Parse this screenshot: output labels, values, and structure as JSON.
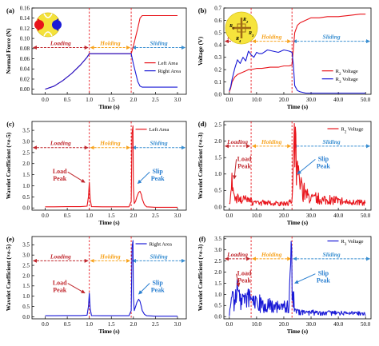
{
  "phase_labels": [
    "Loading",
    "Holding",
    "Sliding"
  ],
  "colors": {
    "left": "#e8141b",
    "right": "#1a1ad6",
    "phase_load": "#c0272d",
    "phase_hold": "#f7a21b",
    "phase_slide": "#3a8fd1",
    "divider": "#e8141b"
  },
  "chart_data": [
    {
      "id": "a",
      "panel_label": "(a)",
      "type": "line",
      "xlabel": "Time (s)",
      "ylabel": "Normal Force (N)",
      "xlim": [
        -0.3,
        3.2
      ],
      "ylim": [
        -0.01,
        0.16
      ],
      "xticks": [
        0.0,
        0.5,
        1.0,
        1.5,
        2.0,
        2.5,
        3.0
      ],
      "xticklabels": [
        "0.0",
        "0.5",
        "1.0",
        "1.5",
        "2.0",
        "2.5",
        "3.0"
      ],
      "yticks": [
        0.0,
        0.02,
        0.04,
        0.06,
        0.08,
        0.1,
        0.12,
        0.14,
        0.16
      ],
      "yticklabels": [
        "0.00",
        "0.02",
        "0.04",
        "0.06",
        "0.08",
        "0.10",
        "0.12",
        "0.14",
        "0.16"
      ],
      "dividers": [
        1.0,
        1.95
      ],
      "phases": [
        [
          -0.3,
          1.0,
          0
        ],
        [
          1.0,
          1.95,
          1
        ],
        [
          1.95,
          3.2,
          2
        ]
      ],
      "phase_y": 0.082,
      "legend": [
        {
          "label": "Left Area",
          "color": "#e8141b"
        },
        {
          "label": "Right Area",
          "color": "#1a1ad6"
        }
      ],
      "legend_pos": [
        2.25,
        0.052
      ],
      "inset": "sensor-dots",
      "series": [
        {
          "name": "Left Area",
          "color": "#e8141b",
          "x": [
            0,
            0.2,
            0.4,
            0.6,
            0.8,
            0.95,
            1.0,
            1.5,
            1.95,
            2.0,
            2.1,
            2.15,
            2.2,
            2.6,
            3.0
          ],
          "y": [
            0,
            0.006,
            0.017,
            0.031,
            0.048,
            0.063,
            0.07,
            0.07,
            0.07,
            0.085,
            0.12,
            0.14,
            0.145,
            0.145,
            0.145
          ]
        },
        {
          "name": "Right Area",
          "color": "#1a1ad6",
          "x": [
            0,
            0.2,
            0.4,
            0.6,
            0.8,
            0.95,
            1.0,
            1.5,
            1.95,
            2.0,
            2.1,
            2.15,
            2.2,
            2.6,
            3.0
          ],
          "y": [
            0,
            0.006,
            0.017,
            0.031,
            0.048,
            0.063,
            0.07,
            0.07,
            0.07,
            0.05,
            0.015,
            0.006,
            0.004,
            0.004,
            0.004
          ]
        }
      ]
    },
    {
      "id": "b",
      "panel_label": "(b)",
      "type": "line",
      "xlabel": "Time (s)",
      "ylabel": "Voltage (V)",
      "xlim": [
        -2,
        52
      ],
      "ylim": [
        0,
        0.7
      ],
      "xticks": [
        0,
        10,
        20,
        30,
        40,
        50
      ],
      "xticklabels": [
        "0.0",
        "10.0",
        "20.0",
        "30.0",
        "40.0",
        "50.0"
      ],
      "yticks": [
        0.0,
        0.1,
        0.2,
        0.3,
        0.4,
        0.5,
        0.6,
        0.7
      ],
      "yticklabels": [
        "0.0",
        "0.1",
        "0.2",
        "0.3",
        "0.4",
        "0.5",
        "0.6",
        "0.7"
      ],
      "dividers": [
        8,
        23
      ],
      "phases": [
        [
          -2,
          8,
          0
        ],
        [
          8,
          23,
          1
        ],
        [
          23,
          52,
          2
        ]
      ],
      "phase_y": 0.43,
      "legend": [
        {
          "label": "R",
          "sub": "2",
          "suffix": " Voltage",
          "color": "#e8141b"
        },
        {
          "label": "R",
          "sub": "3",
          "suffix": " Voltage",
          "color": "#1a1ad6"
        }
      ],
      "legend_pos": [
        34,
        0.19
      ],
      "inset": "sensor-cross",
      "inset_labels": [
        "R",
        "1",
        "R",
        "2",
        "R",
        "3",
        "R",
        "4"
      ],
      "series": [
        {
          "name": "R2 Voltage",
          "color": "#e8141b",
          "x": [
            0,
            0.5,
            1,
            2,
            3,
            4,
            5,
            6,
            7,
            8,
            10,
            12,
            15,
            18,
            20,
            22,
            23,
            24,
            25,
            26,
            28,
            30,
            33,
            36,
            40,
            44,
            48,
            50
          ],
          "y": [
            0.02,
            0.05,
            0.1,
            0.14,
            0.16,
            0.17,
            0.18,
            0.19,
            0.2,
            0.2,
            0.21,
            0.21,
            0.22,
            0.22,
            0.23,
            0.23,
            0.24,
            0.5,
            0.56,
            0.58,
            0.6,
            0.62,
            0.62,
            0.63,
            0.63,
            0.64,
            0.65,
            0.65
          ]
        },
        {
          "name": "R3 Voltage",
          "color": "#1a1ad6",
          "x": [
            0,
            0.5,
            1,
            2,
            3,
            4,
            5,
            6,
            7,
            8,
            9,
            10,
            11,
            12,
            14,
            16,
            18,
            20,
            22,
            23,
            23.5,
            24,
            25,
            26,
            28,
            30,
            33,
            36,
            40,
            44,
            48,
            50
          ],
          "y": [
            0.03,
            0.06,
            0.12,
            0.21,
            0.28,
            0.25,
            0.3,
            0.27,
            0.35,
            0.32,
            0.3,
            0.34,
            0.33,
            0.33,
            0.36,
            0.35,
            0.34,
            0.36,
            0.35,
            0.34,
            0.24,
            0.07,
            0.03,
            0.02,
            0.01,
            0.01,
            0.01,
            0.01,
            0.01,
            0.01,
            0.01,
            0.01
          ]
        }
      ]
    },
    {
      "id": "c",
      "panel_label": "(c)",
      "type": "line",
      "xlabel": "Time (s)",
      "ylabel": "Wavelet Coefficient (×e-5)",
      "xlim": [
        -0.3,
        3.2
      ],
      "ylim": [
        -0.1,
        3.9
      ],
      "xticks": [
        0.0,
        0.5,
        1.0,
        1.5,
        2.0,
        2.5,
        3.0
      ],
      "xticklabels": [
        "0.0",
        "0.5",
        "1.0",
        "1.5",
        "2.0",
        "2.5",
        "3.0"
      ],
      "yticks": [
        0.0,
        0.5,
        1.0,
        1.5,
        2.0,
        2.5,
        3.0,
        3.5
      ],
      "yticklabels": [
        "0.0",
        "0.5",
        "1.0",
        "1.5",
        "2.0",
        "2.5",
        "3.0",
        "3.5"
      ],
      "dividers": [
        1.0,
        1.95
      ],
      "phases": [
        [
          -0.3,
          1.0,
          0
        ],
        [
          1.0,
          1.95,
          1
        ],
        [
          1.95,
          3.2,
          2
        ]
      ],
      "phase_y": 2.72,
      "legend": [
        {
          "label": "Left Area",
          "color": "#e8141b"
        }
      ],
      "legend_pos": [
        2.05,
        3.55
      ],
      "annotations": [
        {
          "lines": [
            "Load",
            "Peak"
          ],
          "color": "#c0272d",
          "tx": 0.33,
          "ty": 1.55,
          "ax": 0.9,
          "ay": 1.15
        },
        {
          "lines": [
            "Slip",
            "Peak"
          ],
          "color": "#2a7fd0",
          "tx": 2.55,
          "ty": 1.55,
          "ax": 2.1,
          "ay": 1.1
        }
      ],
      "series": [
        {
          "name": "Left Area",
          "color": "#e8141b",
          "x": [
            0,
            0.2,
            0.5,
            0.8,
            0.95,
            0.98,
            1.0,
            1.02,
            1.05,
            1.3,
            1.6,
            1.9,
            1.95,
            1.97,
            1.99,
            2.0,
            2.02,
            2.05,
            2.08,
            2.12,
            2.15,
            2.18,
            2.2,
            2.25,
            2.3,
            2.5,
            2.8,
            3.0
          ],
          "y": [
            0.05,
            0.05,
            0.06,
            0.06,
            0.08,
            0.5,
            1.15,
            0.4,
            0.06,
            0.05,
            0.05,
            0.05,
            0.3,
            3.4,
            3.7,
            1.0,
            0.2,
            0.3,
            0.5,
            0.7,
            0.75,
            0.6,
            0.4,
            0.15,
            0.05,
            0.03,
            0.03,
            0.03
          ]
        }
      ]
    },
    {
      "id": "d",
      "panel_label": "(d)",
      "type": "line",
      "xlabel": "Time (s)",
      "ylabel": "Wavelet Coefficient (×e-3)",
      "xlim": [
        -2,
        52
      ],
      "ylim": [
        -0.1,
        2.6
      ],
      "xticks": [
        0,
        10,
        20,
        30,
        40,
        50
      ],
      "xticklabels": [
        "0.0",
        "10.0",
        "20.0",
        "30.0",
        "40.0",
        "50.0"
      ],
      "yticks": [
        0.0,
        0.5,
        1.0,
        1.5,
        2.0,
        2.5
      ],
      "yticklabels": [
        "0.0",
        "0.5",
        "1.0",
        "1.5",
        "2.0",
        "2.5"
      ],
      "dividers": [
        8,
        23
      ],
      "phases": [
        [
          -2,
          8,
          0
        ],
        [
          8,
          23,
          1
        ],
        [
          23,
          52,
          2
        ]
      ],
      "phase_y": 1.85,
      "legend": [
        {
          "label": "R",
          "sub": "2",
          "suffix": " Voltage",
          "color": "#e8141b"
        }
      ],
      "legend_pos": [
        36,
        2.38
      ],
      "annotations": [
        {
          "lines": [
            "Load",
            "Peak"
          ],
          "color": "#c0272d",
          "tx": 5.5,
          "ty": 1.4,
          "ax": 1.8,
          "ay": 0.85
        },
        {
          "lines": [
            "Slip",
            "Peak"
          ],
          "color": "#2a7fd0",
          "tx": 34.5,
          "ty": 1.4,
          "ax": 25,
          "ay": 1.0
        }
      ],
      "series": [
        {
          "name": "R2 Voltage",
          "color": "#e8141b",
          "noise": true,
          "seed": 7,
          "x": [
            0,
            0.5,
            1,
            1.5,
            2,
            3,
            4,
            6,
            8,
            10,
            14,
            18,
            22,
            23,
            23.5,
            24,
            25,
            27,
            30,
            34,
            38,
            42,
            46,
            50
          ],
          "y": [
            0.1,
            0.4,
            0.95,
            0.5,
            0.2,
            0.35,
            0.25,
            0.3,
            0.2,
            0.15,
            0.15,
            0.12,
            0.15,
            0.2,
            1.2,
            2.1,
            1.1,
            0.6,
            0.35,
            0.28,
            0.25,
            0.2,
            0.18,
            0.15
          ]
        }
      ]
    },
    {
      "id": "e",
      "panel_label": "(e)",
      "type": "line",
      "xlabel": "Time (s)",
      "ylabel": "Wavelet Coefficient (×e-5)",
      "xlim": [
        -0.3,
        3.2
      ],
      "ylim": [
        -0.1,
        3.9
      ],
      "xticks": [
        0.0,
        0.5,
        1.0,
        1.5,
        2.0,
        2.5,
        3.0
      ],
      "xticklabels": [
        "0.0",
        "0.5",
        "1.0",
        "1.5",
        "2.0",
        "2.5",
        "3.0"
      ],
      "yticks": [
        0.0,
        0.5,
        1.0,
        1.5,
        2.0,
        2.5,
        3.0,
        3.5
      ],
      "yticklabels": [
        "0.0",
        "0.5",
        "1.0",
        "1.5",
        "2.0",
        "2.5",
        "3.0",
        "3.5"
      ],
      "dividers": [
        1.0,
        1.95
      ],
      "phases": [
        [
          -0.3,
          1.0,
          0
        ],
        [
          1.0,
          1.95,
          1
        ],
        [
          1.95,
          3.2,
          2
        ]
      ],
      "phase_y": 2.72,
      "legend": [
        {
          "label": "Right Area",
          "color": "#1a1ad6"
        }
      ],
      "legend_pos": [
        2.05,
        3.55
      ],
      "annotations": [
        {
          "lines": [
            "Load",
            "Peak"
          ],
          "color": "#c0272d",
          "tx": 0.33,
          "ty": 1.55,
          "ax": 0.9,
          "ay": 1.15
        },
        {
          "lines": [
            "Slip",
            "Peak"
          ],
          "color": "#2a7fd0",
          "tx": 2.55,
          "ty": 1.55,
          "ax": 2.12,
          "ay": 1.1
        }
      ],
      "series": [
        {
          "name": "Right Area",
          "color": "#1a1ad6",
          "x": [
            0,
            0.2,
            0.5,
            0.8,
            0.95,
            0.98,
            1.0,
            1.02,
            1.05,
            1.3,
            1.6,
            1.9,
            1.95,
            1.97,
            1.99,
            2.0,
            2.02,
            2.05,
            2.08,
            2.12,
            2.15,
            2.18,
            2.2,
            2.25,
            2.3,
            2.5,
            2.8,
            3.0
          ],
          "y": [
            0.05,
            0.05,
            0.06,
            0.06,
            0.08,
            0.5,
            1.15,
            0.4,
            0.06,
            0.05,
            0.05,
            0.05,
            0.3,
            3.4,
            3.7,
            1.0,
            0.3,
            0.5,
            0.7,
            0.85,
            0.75,
            0.5,
            0.3,
            0.12,
            0.05,
            0.03,
            0.03,
            0.03
          ]
        }
      ]
    },
    {
      "id": "f",
      "panel_label": "(f)",
      "type": "line",
      "xlabel": "Time (s)",
      "ylabel": "Wavelet Coefficient (×e-3)",
      "xlim": [
        -2,
        52
      ],
      "ylim": [
        -0.1,
        3.6
      ],
      "xticks": [
        0,
        10,
        20,
        30,
        40,
        50
      ],
      "xticklabels": [
        "0.0",
        "10.0",
        "20.0",
        "30.0",
        "40.0",
        "50.0"
      ],
      "yticks": [
        0.0,
        0.5,
        1.0,
        1.5,
        2.0,
        2.5,
        3.0,
        3.5
      ],
      "yticklabels": [
        "0.0",
        "0.5",
        "1.0",
        "1.5",
        "2.0",
        "2.5",
        "3.0",
        "3.5"
      ],
      "dividers": [
        8,
        23
      ],
      "phases": [
        [
          -2,
          8,
          0
        ],
        [
          8,
          23,
          1
        ],
        [
          23,
          52,
          2
        ]
      ],
      "phase_y": 2.6,
      "legend": [
        {
          "label": "R",
          "sub": "3",
          "suffix": " Voltage",
          "color": "#1a1ad6"
        }
      ],
      "legend_pos": [
        36,
        3.4
      ],
      "annotations": [
        {
          "lines": [
            "Load",
            "Peak"
          ],
          "color": "#c0272d",
          "tx": 5.5,
          "ty": 1.85,
          "ax": 3.5,
          "ay": 1.35
        },
        {
          "lines": [
            "Slip",
            "Peak"
          ],
          "color": "#2a7fd0",
          "tx": 34.5,
          "ty": 1.85,
          "ax": 24,
          "ay": 1.5
        }
      ],
      "series": [
        {
          "name": "R3 Voltage",
          "color": "#1a1ad6",
          "noise": true,
          "seed": 13,
          "x": [
            0,
            0.5,
            1,
            2,
            3,
            4,
            5,
            6,
            7,
            8,
            10,
            12,
            14,
            16,
            18,
            20,
            22,
            22.8,
            23.2,
            23.6,
            24,
            25,
            27,
            30,
            34,
            38,
            42,
            46,
            50
          ],
          "y": [
            0.1,
            0.5,
            0.9,
            0.7,
            1.3,
            0.9,
            1.0,
            0.8,
            1.1,
            0.7,
            0.9,
            0.6,
            0.7,
            0.5,
            0.6,
            0.5,
            0.7,
            3.4,
            2.0,
            1.0,
            0.5,
            0.3,
            0.25,
            0.22,
            0.2,
            0.2,
            0.18,
            0.18,
            0.15
          ]
        }
      ]
    }
  ]
}
